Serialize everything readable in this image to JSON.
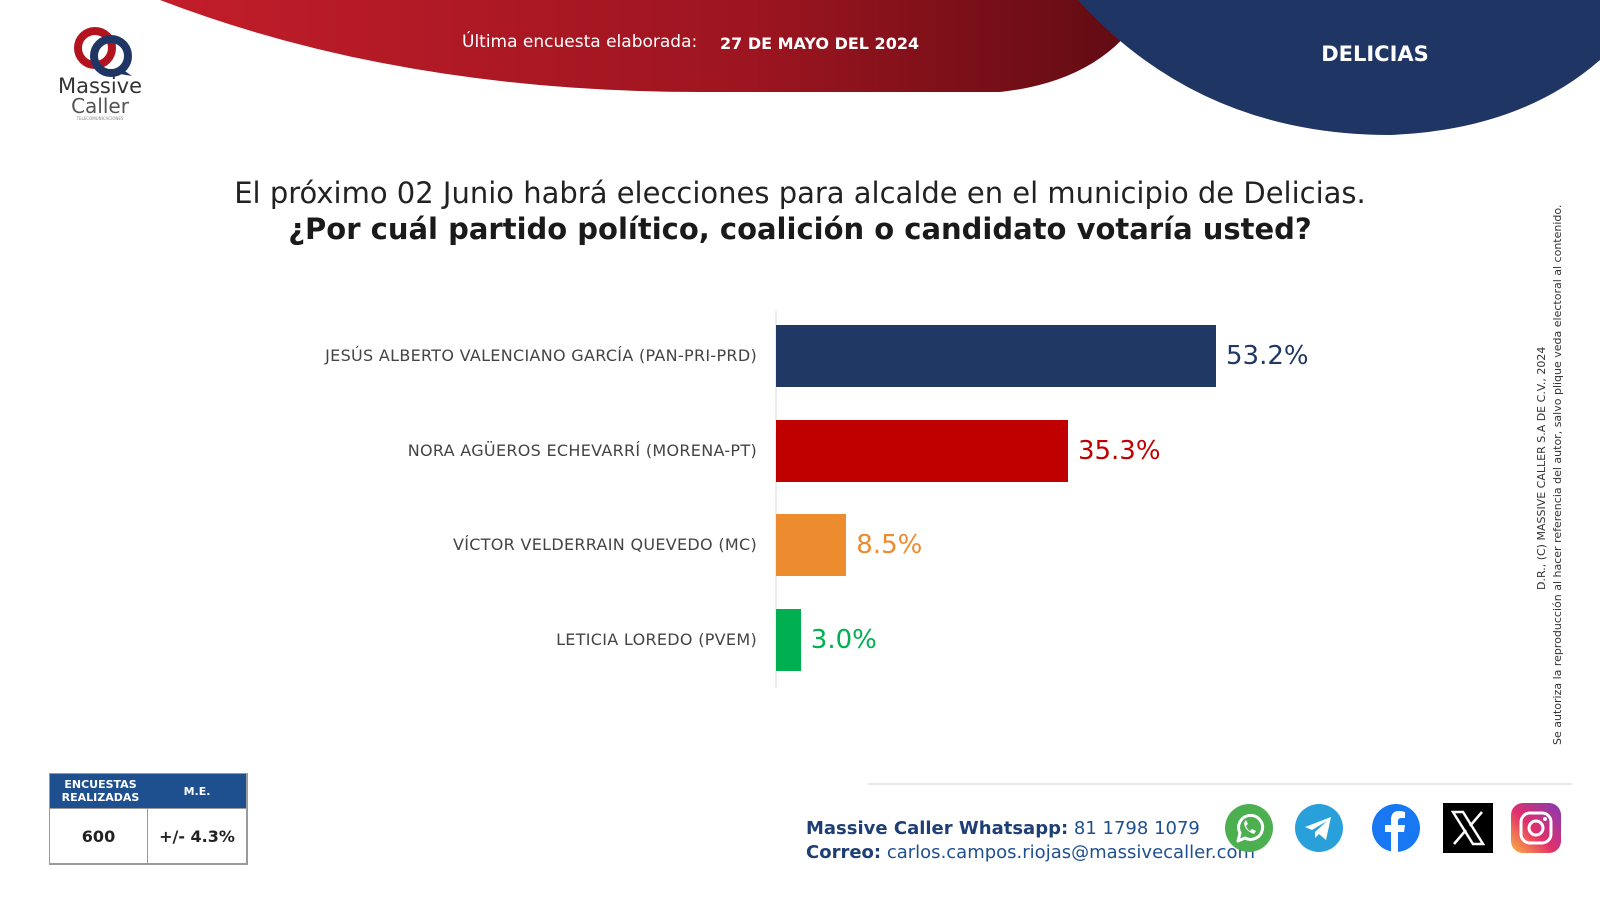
{
  "brand": {
    "name_line1": "Massive",
    "name_line2": "Caller",
    "tagline": "TELECOMUNICACIONES"
  },
  "header": {
    "survey_label": "Última encuesta elaborada:",
    "survey_date": "27 DE MAYO DEL 2024",
    "municipality": "DELICIAS"
  },
  "question": {
    "line1": "El próximo 02 Junio habrá elecciones para alcalde en el municipio de Delicias.",
    "line2": "¿Por cuál partido político, coalición o candidato votaría usted?"
  },
  "chart_data": {
    "type": "bar",
    "orientation": "horizontal",
    "categories": [
      "JESÚS ALBERTO VALENCIANO GARCÍA (PAN-PRI-PRD)",
      "NORA AGÜEROS ECHEVARRÍ (MORENA-PT)",
      "VÍCTOR VELDERRAIN QUEVEDO (MC)",
      "LETICIA LOREDO (PVEM)"
    ],
    "values": [
      53.2,
      35.3,
      8.5,
      3.0
    ],
    "value_labels": [
      "53.2%",
      "35.3%",
      "8.5%",
      "3.0%"
    ],
    "colors": [
      "#1f3864",
      "#c00000",
      "#ed8b2f",
      "#00b050"
    ],
    "xlim": [
      0,
      100
    ],
    "title": "¿Por cuál partido político, coalición o candidato votaría usted?",
    "xlabel": "",
    "ylabel": ""
  },
  "copyright": {
    "line1": "D.R., (C) MASSIVE CALLER S.A DE C.V., 2024",
    "line2": "Se autoriza la reproducción al hacer referencia del autor, salvo plique veda electoral al contenido."
  },
  "stats_table": {
    "surveys_header": "ENCUESTAS REALIZADAS",
    "me_header": "M.E.",
    "surveys_value": "600",
    "me_value": "+/- 4.3%"
  },
  "contact": {
    "whatsapp_label": "Massive Caller Whatsapp:",
    "whatsapp_number": "81 1798 1079",
    "email_label": "Correo:",
    "email": "carlos.campos.riojas@massivecaller.com"
  },
  "colors": {
    "brand_red": "#b3121f",
    "brand_navy": "#1f3564",
    "table_blue": "#1e4f8e"
  }
}
